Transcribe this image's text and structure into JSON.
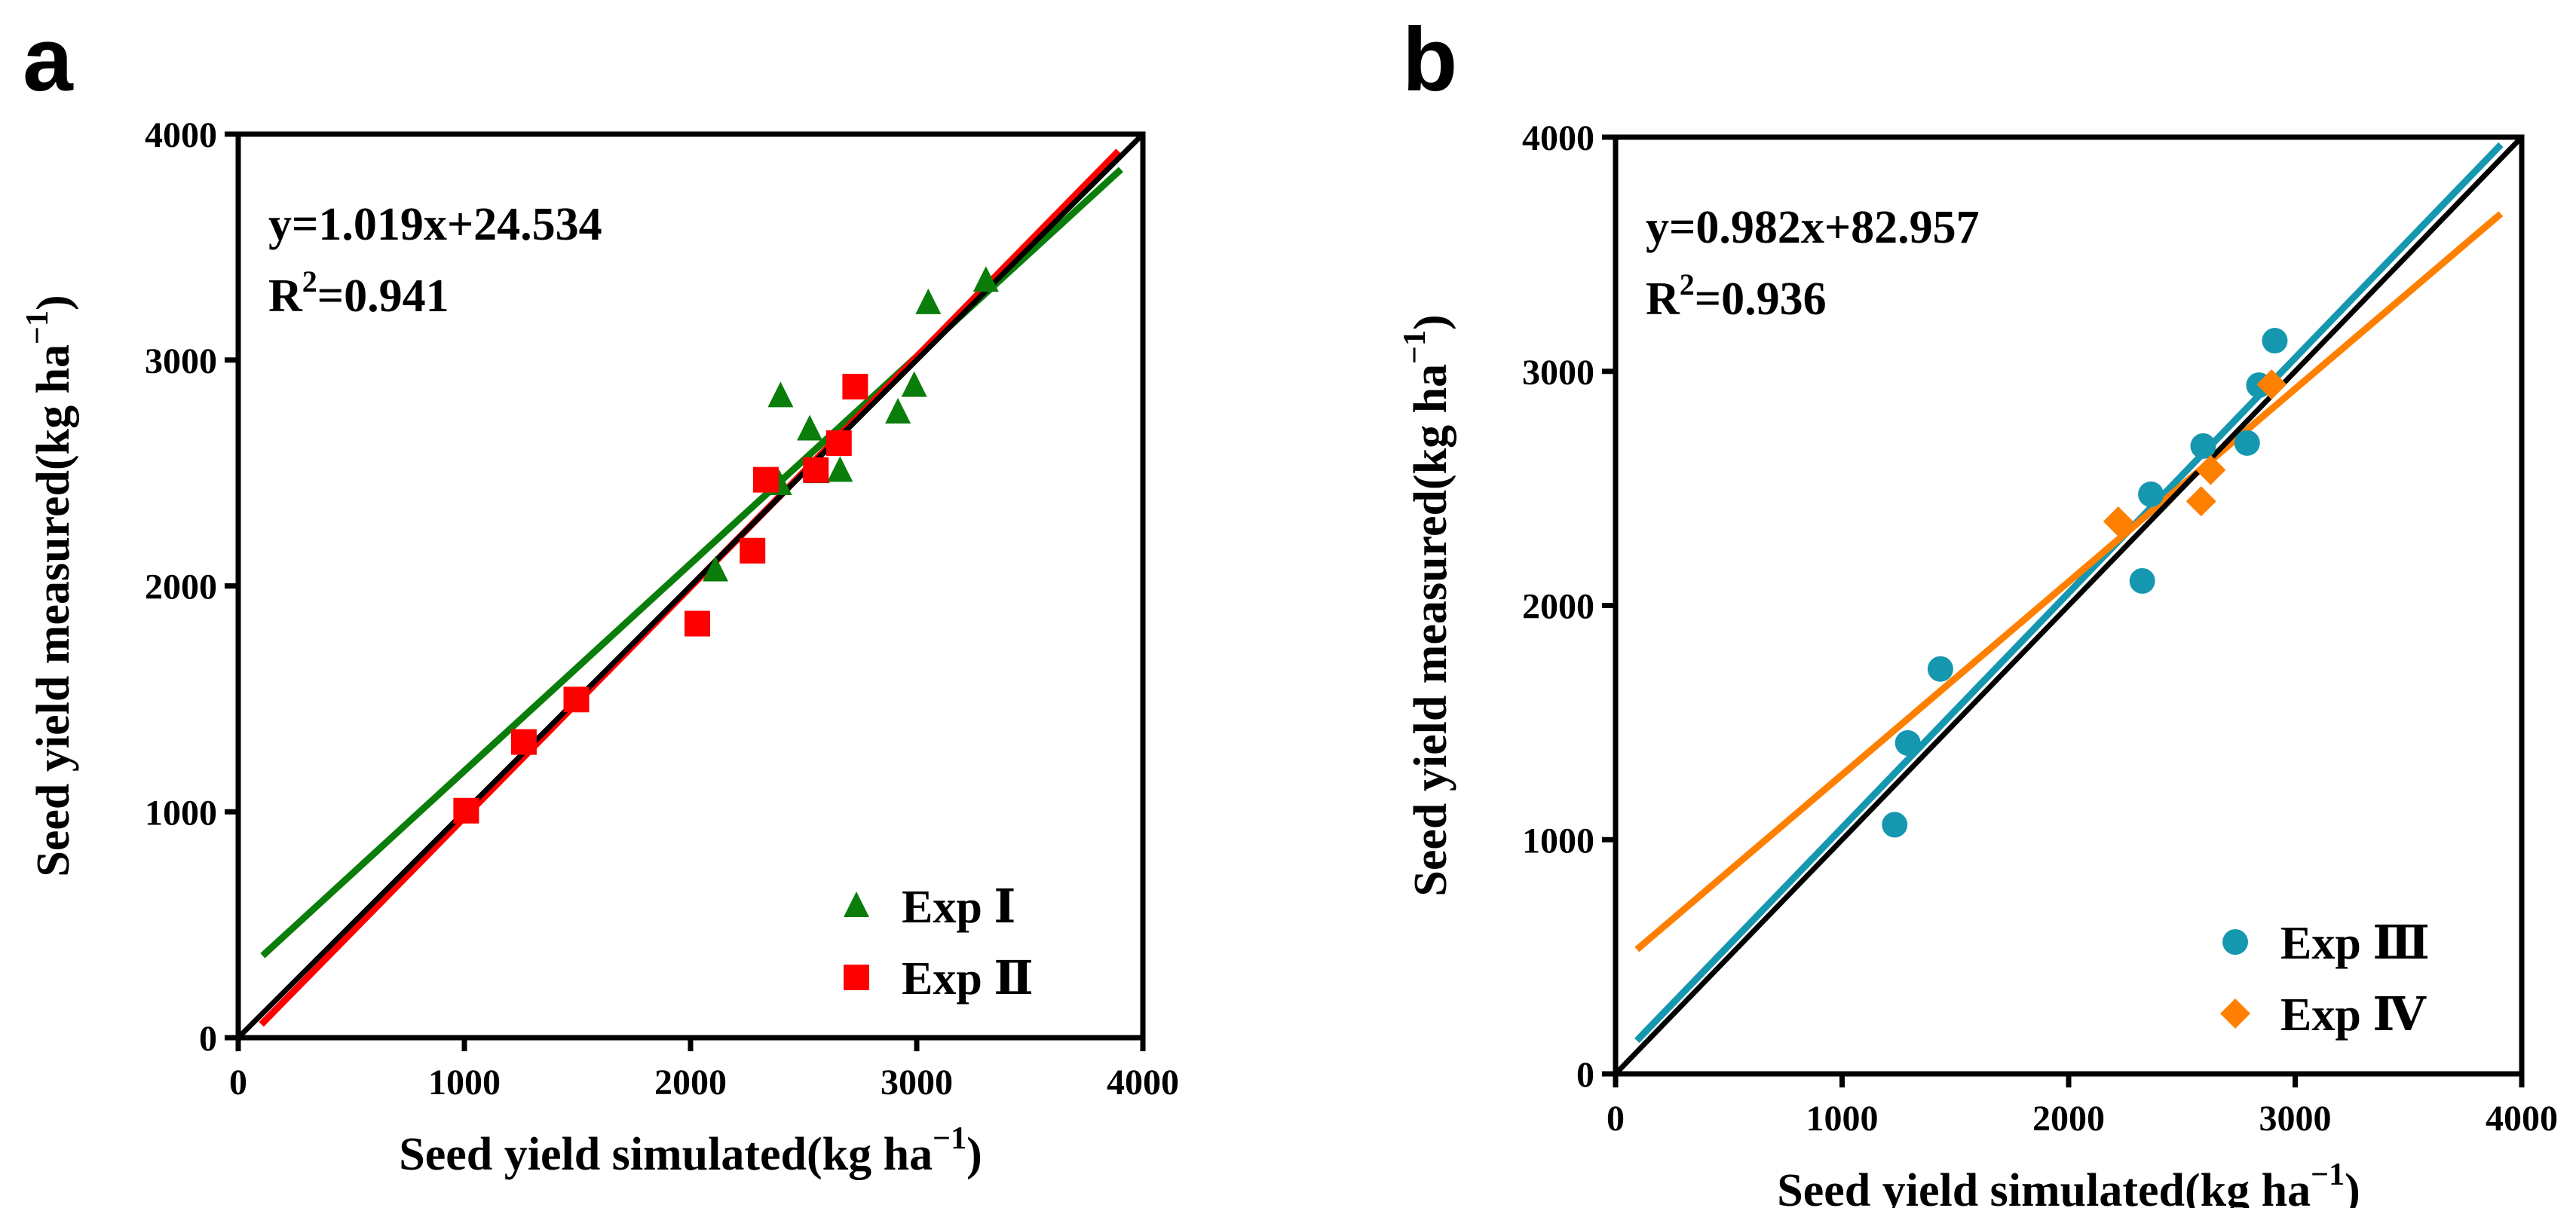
{
  "chart_data": [
    {
      "type": "scatter",
      "panel_label": "a",
      "xlabel": "Seed yield simulated(kg ha",
      "ylabel": "Seed yield measured(kg ha",
      "unit_exponent": "−1",
      "xlim": [
        0,
        4000
      ],
      "ylim": [
        0,
        4000
      ],
      "xticks": [
        "0",
        "1000",
        "2000",
        "3000",
        "4000"
      ],
      "yticks": [
        "0",
        "1000",
        "2000",
        "3000",
        "4000"
      ],
      "equation": "y=1.019x+24.534",
      "r2_label": "R",
      "r2_sup": "2",
      "r2_value": "=0.941",
      "legend_position": "bottom-right",
      "series": [
        {
          "name": "Exp Ⅰ",
          "marker": "triangle",
          "color": "#0a7d0a",
          "x": [
            2110,
            2398,
            2527,
            2392,
            2559,
            2661,
            2917,
            2989,
            3051,
            3306
          ],
          "y": [
            2070,
            2841,
            2694,
            2452,
            2505,
            2511,
            2769,
            2887,
            3253,
            3352
          ],
          "fit": [
            [
              108,
              363
            ],
            [
              3903,
              3844
            ]
          ]
        },
        {
          "name": "Exp Ⅱ",
          "marker": "square",
          "color": "#ff0000",
          "x": [
            1008,
            1263,
            1495,
            2030,
            2274,
            2333,
            2554,
            2656,
            2728
          ],
          "y": [
            1005,
            1309,
            1497,
            1833,
            2156,
            2470,
            2513,
            2632,
            2882
          ],
          "fit": [
            [
              102,
              59
            ],
            [
              3892,
              3925
            ]
          ]
        }
      ],
      "reference_line": [
        [
          0,
          0
        ],
        [
          4000,
          4000
        ]
      ]
    },
    {
      "type": "scatter",
      "panel_label": "b",
      "xlabel": "Seed yield simulated(kg ha",
      "ylabel": "Seed yield measured(kg ha",
      "unit_exponent": "−1",
      "xlim": [
        0,
        4000
      ],
      "ylim": [
        0,
        4000
      ],
      "xticks": [
        "0",
        "1000",
        "2000",
        "3000",
        "4000"
      ],
      "yticks": [
        "0",
        "1000",
        "2000",
        "3000",
        "4000"
      ],
      "equation": "y=0.982x+82.957",
      "r2_label": "R",
      "r2_sup": "2",
      "r2_value": "=0.936",
      "legend_position": "bottom-right",
      "series": [
        {
          "name": "Exp Ⅲ",
          "marker": "circle",
          "color": "#1597b0",
          "x": [
            1232,
            1290,
            1434,
            2325,
            2363,
            2594,
            2788,
            2840,
            2910
          ],
          "y": [
            1064,
            1413,
            1729,
            2105,
            2475,
            2681,
            2694,
            2941,
            3131
          ],
          "fit": [
            [
              94,
              142
            ],
            [
              3908,
              3968
            ]
          ]
        },
        {
          "name": "Exp Ⅳ",
          "marker": "diamond",
          "color": "#ff8000",
          "x": [
            2219,
            2585,
            2627,
            2896
          ],
          "y": [
            2359,
            2445,
            2579,
            2944
          ],
          "fit": [
            [
              94,
              531
            ],
            [
              3908,
              3673
            ]
          ]
        }
      ],
      "reference_line": [
        [
          0,
          0
        ],
        [
          4000,
          4000
        ]
      ]
    }
  ]
}
